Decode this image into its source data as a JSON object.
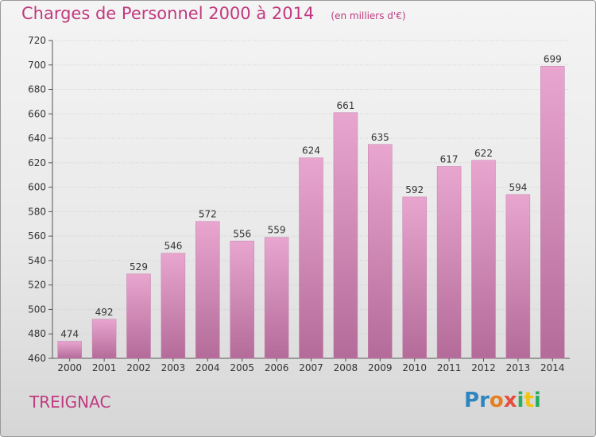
{
  "header": {
    "title": "Charges de Personnel 2000 à 2014",
    "subtitle": "(en milliers d'€)"
  },
  "footer": {
    "town": "TREIGNAC",
    "logo_letters": [
      {
        "char": "P",
        "color": "#2e86c1"
      },
      {
        "char": "r",
        "color": "#2e86c1"
      },
      {
        "char": "o",
        "color": "#e67e22"
      },
      {
        "char": "x",
        "color": "#e74c3c"
      },
      {
        "char": "i",
        "color": "#27ae60"
      },
      {
        "char": "t",
        "color": "#f1c40f"
      },
      {
        "char": "i",
        "color": "#27ae60"
      }
    ]
  },
  "colors": {
    "bar_top": "#e8a6cf",
    "bar_bottom": "#b46b99",
    "title": "#c0397f"
  },
  "chart_data": {
    "type": "bar",
    "title": "Charges de Personnel 2000 à 2014",
    "subtitle": "(en milliers d'€)",
    "xlabel": "",
    "ylabel": "",
    "categories": [
      "2000",
      "2001",
      "2002",
      "2003",
      "2004",
      "2005",
      "2006",
      "2007",
      "2008",
      "2009",
      "2010",
      "2011",
      "2012",
      "2013",
      "2014"
    ],
    "values": [
      474,
      492,
      529,
      546,
      572,
      556,
      559,
      624,
      661,
      635,
      592,
      617,
      622,
      594,
      699
    ],
    "ylim": [
      460,
      720
    ],
    "yticks": [
      460,
      480,
      500,
      520,
      540,
      560,
      580,
      600,
      620,
      640,
      660,
      680,
      700,
      720
    ],
    "grid": true
  }
}
